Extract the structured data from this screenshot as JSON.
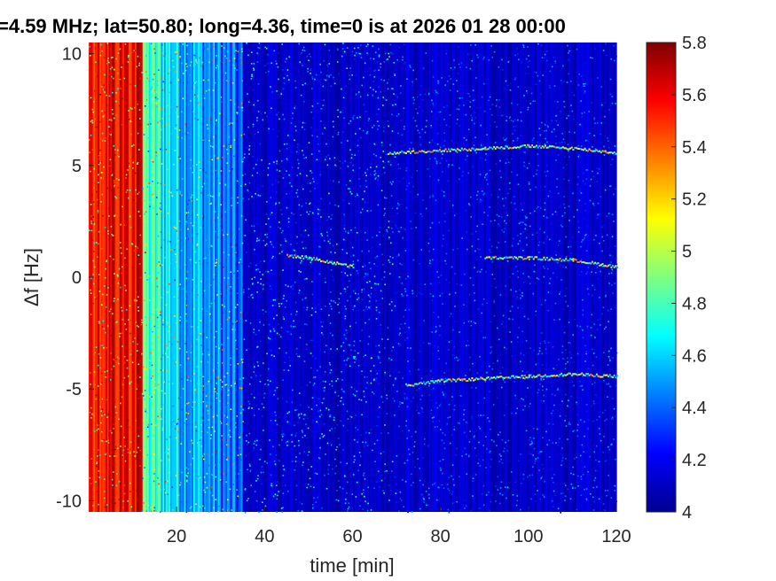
{
  "chart_data": {
    "type": "heatmap",
    "title": "=4.59 MHz;  lat=50.80; long=4.36, time=0 is at 2026 01 28 00:00",
    "xlabel": "time [min]",
    "ylabel": "Δf [Hz]",
    "xlim": [
      0,
      120
    ],
    "ylim": [
      -10.5,
      10.5
    ],
    "xticks": [
      20,
      40,
      60,
      80,
      100,
      120
    ],
    "xtick_labels": [
      "20",
      "40",
      "60",
      "80",
      "100",
      "120"
    ],
    "yticks": [
      10,
      5,
      0,
      -5,
      -10
    ],
    "ytick_labels": [
      "10",
      "5",
      "0",
      "-5",
      "-10"
    ],
    "colorbar": {
      "colormap": "jet",
      "range": [
        4,
        5.8
      ],
      "ticks": [
        5.8,
        5.6,
        5.4,
        5.2,
        5,
        4.8,
        4.6,
        4.4,
        4.2,
        4
      ],
      "tick_labels": [
        "5.8",
        "5.6",
        "5.4",
        "5.2",
        "5",
        "4.8",
        "4.6",
        "4.4",
        "4.2",
        "4"
      ]
    },
    "features": [
      {
        "description": "high-intensity broadband region",
        "time_range_min": [
          0,
          12
        ],
        "level": 5.8
      },
      {
        "description": "moderate broadband region",
        "time_range_min": [
          12,
          35
        ],
        "level": 4.8
      },
      {
        "name": "",
        "type": "line",
        "x": [
          68,
          80,
          90,
          100,
          110,
          120
        ],
        "y": [
          5.6,
          5.7,
          5.8,
          5.9,
          5.8,
          5.6
        ]
      },
      {
        "name": "",
        "type": "line",
        "x": [
          45,
          50,
          55,
          60
        ],
        "y": [
          1.0,
          0.9,
          0.7,
          0.5
        ]
      },
      {
        "name": "",
        "type": "line",
        "x": [
          90,
          100,
          110,
          120
        ],
        "y": [
          0.9,
          0.9,
          0.8,
          0.5
        ]
      },
      {
        "name": "",
        "type": "line",
        "x": [
          72,
          80,
          90,
          100,
          110,
          120
        ],
        "y": [
          -4.8,
          -4.6,
          -4.5,
          -4.4,
          -4.3,
          -4.4
        ]
      }
    ],
    "grid": false
  }
}
